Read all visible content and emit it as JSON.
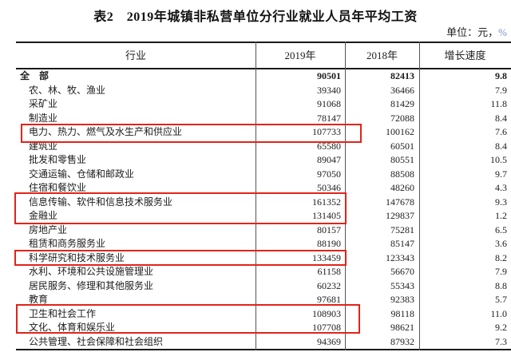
{
  "title": "表2　2019年城镇非私营单位分行业就业人员年平均工资",
  "unit": {
    "prefix": "单位：元，",
    "percent": "%"
  },
  "colors": {
    "highlight_box": "#e2231a",
    "text": "#1c1c1c",
    "table_rule": "#1a1a1a"
  },
  "table": {
    "columns": [
      "行业",
      "2019年",
      "2018年",
      "增长速度"
    ],
    "rows": [
      {
        "name": "全　部",
        "y2019": "90501",
        "y2018": "82413",
        "growth": "9.8",
        "bold": true,
        "highlighted": false
      },
      {
        "name": "农、林、牧、渔业",
        "y2019": "39340",
        "y2018": "36466",
        "growth": "7.9",
        "bold": false,
        "highlighted": false
      },
      {
        "name": "采矿业",
        "y2019": "91068",
        "y2018": "81429",
        "growth": "11.8",
        "bold": false,
        "highlighted": false
      },
      {
        "name": "制造业",
        "y2019": "78147",
        "y2018": "72088",
        "growth": "8.4",
        "bold": false,
        "highlighted": false
      },
      {
        "name": "电力、热力、燃气及水生产和供应业",
        "y2019": "107733",
        "y2018": "100162",
        "growth": "7.6",
        "bold": false,
        "highlighted": true
      },
      {
        "name": "建筑业",
        "y2019": "65580",
        "y2018": "60501",
        "growth": "8.4",
        "bold": false,
        "highlighted": false
      },
      {
        "name": "批发和零售业",
        "y2019": "89047",
        "y2018": "80551",
        "growth": "10.5",
        "bold": false,
        "highlighted": false
      },
      {
        "name": "交通运输、仓储和邮政业",
        "y2019": "97050",
        "y2018": "88508",
        "growth": "9.7",
        "bold": false,
        "highlighted": false
      },
      {
        "name": "住宿和餐饮业",
        "y2019": "50346",
        "y2018": "48260",
        "growth": "4.3",
        "bold": false,
        "highlighted": false
      },
      {
        "name": "信息传输、软件和信息技术服务业",
        "y2019": "161352",
        "y2018": "147678",
        "growth": "9.3",
        "bold": false,
        "highlighted": true
      },
      {
        "name": "金融业",
        "y2019": "131405",
        "y2018": "129837",
        "growth": "1.2",
        "bold": false,
        "highlighted": true
      },
      {
        "name": "房地产业",
        "y2019": "80157",
        "y2018": "75281",
        "growth": "6.5",
        "bold": false,
        "highlighted": false
      },
      {
        "name": "租赁和商务服务业",
        "y2019": "88190",
        "y2018": "85147",
        "growth": "3.6",
        "bold": false,
        "highlighted": false
      },
      {
        "name": "科学研究和技术服务业",
        "y2019": "133459",
        "y2018": "123343",
        "growth": "8.2",
        "bold": false,
        "highlighted": true
      },
      {
        "name": "水利、环境和公共设施管理业",
        "y2019": "61158",
        "y2018": "56670",
        "growth": "7.9",
        "bold": false,
        "highlighted": false
      },
      {
        "name": "居民服务、修理和其他服务业",
        "y2019": "60232",
        "y2018": "55343",
        "growth": "8.8",
        "bold": false,
        "highlighted": false
      },
      {
        "name": "教育",
        "y2019": "97681",
        "y2018": "92383",
        "growth": "5.7",
        "bold": false,
        "highlighted": false
      },
      {
        "name": "卫生和社会工作",
        "y2019": "108903",
        "y2018": "98118",
        "growth": "11.0",
        "bold": false,
        "highlighted": true
      },
      {
        "name": "文化、体育和娱乐业",
        "y2019": "107708",
        "y2018": "98621",
        "growth": "9.2",
        "bold": false,
        "highlighted": true
      },
      {
        "name": "公共管理、社会保障和社会组织",
        "y2019": "94369",
        "y2018": "87932",
        "growth": "7.3",
        "bold": false,
        "highlighted": false
      }
    ]
  }
}
